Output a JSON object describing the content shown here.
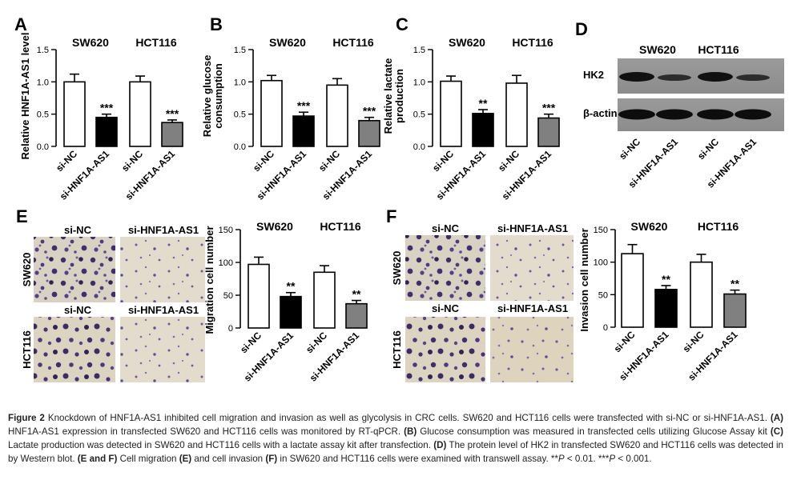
{
  "chart_data": [
    {
      "panel": "A",
      "type": "bar",
      "ylabel": "Relative HNF1A-AS1 level",
      "ylim": [
        0,
        1.5
      ],
      "yticks": [
        "0.0",
        "0.5",
        "1.0",
        "1.5"
      ],
      "groups": [
        "SW620",
        "HCT116"
      ],
      "categories": [
        "si-NC",
        "si-HNF1A-AS1",
        "si-NC",
        "si-HNF1A-AS1"
      ],
      "values": [
        1.0,
        0.45,
        1.0,
        0.37
      ],
      "errors": [
        0.12,
        0.05,
        0.09,
        0.04
      ],
      "fills": [
        "#ffffff",
        "#000000",
        "#ffffff",
        "#808080"
      ],
      "significance": [
        "",
        "***",
        "",
        "***"
      ]
    },
    {
      "panel": "B",
      "type": "bar",
      "ylabel": "Relative glucose consumption",
      "ylim": [
        0,
        1.5
      ],
      "yticks": [
        "0.0",
        "0.5",
        "1.0",
        "1.5"
      ],
      "groups": [
        "SW620",
        "HCT116"
      ],
      "categories": [
        "si-NC",
        "si-HNF1A-AS1",
        "si-NC",
        "si-HNF1A-AS1"
      ],
      "values": [
        1.02,
        0.47,
        0.95,
        0.4
      ],
      "errors": [
        0.08,
        0.06,
        0.1,
        0.05
      ],
      "fills": [
        "#ffffff",
        "#000000",
        "#ffffff",
        "#808080"
      ],
      "significance": [
        "",
        "***",
        "",
        "***"
      ]
    },
    {
      "panel": "C",
      "type": "bar",
      "ylabel": "Relative lactate production",
      "ylim": [
        0,
        1.5
      ],
      "yticks": [
        "0.0",
        "0.5",
        "1.0",
        "1.5"
      ],
      "groups": [
        "SW620",
        "HCT116"
      ],
      "categories": [
        "si-NC",
        "si-HNF1A-AS1",
        "si-NC",
        "si-HNF1A-AS1"
      ],
      "values": [
        1.01,
        0.51,
        0.98,
        0.44
      ],
      "errors": [
        0.08,
        0.06,
        0.12,
        0.06
      ],
      "fills": [
        "#ffffff",
        "#000000",
        "#ffffff",
        "#808080"
      ],
      "significance": [
        "",
        "**",
        "",
        "***"
      ]
    },
    {
      "panel": "E",
      "type": "bar",
      "ylabel": "Migration cell number",
      "ylim": [
        0,
        150
      ],
      "yticks": [
        "0",
        "50",
        "100",
        "150"
      ],
      "groups": [
        "SW620",
        "HCT116"
      ],
      "categories": [
        "si-NC",
        "si-HNF1A-AS1",
        "si-NC",
        "si-HNF1A-AS1"
      ],
      "values": [
        97,
        48,
        85,
        37
      ],
      "errors": [
        11,
        6,
        10,
        5
      ],
      "fills": [
        "#ffffff",
        "#000000",
        "#ffffff",
        "#808080"
      ],
      "significance": [
        "",
        "**",
        "",
        "**"
      ]
    },
    {
      "panel": "F",
      "type": "bar",
      "ylabel": "Invasion cell number",
      "ylim": [
        0,
        150
      ],
      "yticks": [
        "0",
        "50",
        "100",
        "150"
      ],
      "groups": [
        "SW620",
        "HCT116"
      ],
      "categories": [
        "si-NC",
        "si-HNF1A-AS1",
        "si-NC",
        "si-HNF1A-AS1"
      ],
      "values": [
        113,
        58,
        100,
        51
      ],
      "errors": [
        14,
        6,
        12,
        6
      ],
      "fills": [
        "#ffffff",
        "#000000",
        "#ffffff",
        "#808080"
      ],
      "significance": [
        "",
        "**",
        "",
        "**"
      ]
    }
  ],
  "panel_letters": {
    "a": "A",
    "b": "B",
    "c": "C",
    "d": "D",
    "e": "E",
    "f": "F"
  },
  "western_blot": {
    "groups": [
      "SW620",
      "HCT116"
    ],
    "rows": [
      "HK2",
      "β-actin"
    ],
    "lanes": [
      "si-NC",
      "si-HNF1A-AS1",
      "si-NC",
      "si-HNF1A-AS1"
    ]
  },
  "transwell": {
    "migration": {
      "col_labels": [
        "si-NC",
        "si-HNF1A-AS1"
      ],
      "row2_labels": [
        "si-NC",
        "si-HNF1A-AS1"
      ],
      "row_labels": [
        "SW620",
        "HCT116"
      ]
    },
    "invasion": {
      "col_labels": [
        "si-NC",
        "si-HNF1A-AS1"
      ],
      "row2_labels": [
        "si-NC",
        "si-HNF1A-AS1"
      ],
      "row_labels": [
        "SW620",
        "HCT116"
      ]
    }
  },
  "caption": {
    "figure_label": "Figure 2",
    "title": " Knockdown of HNF1A-AS1 inhibited cell migration and invasion as well as glycolysis in CRC cells. SW620 and HCT116 cells were transfected with si-NC or si-HNF1A-AS1. ",
    "a_label": "(A)",
    "a_text": " HNF1A-AS1 expression in transfected SW620 and HCT116 cells was monitored by RT-qPCR. ",
    "b_label": "(B)",
    "b_text": " Glucose consumption was measured in transfected cells utilizing Glucose Assay kit ",
    "c_label": "(C)",
    "c_text": " Lactate production was detected in SW620 and HCT116 cells with a lactate assay kit after transfection. ",
    "d_label": "(D)",
    "d_text": " The protein level of HK2 in transfected SW620 and HCT116 cells was detected in by Western blot. ",
    "ef_label": "(E and F)",
    "ef_text": " Cell migration ",
    "e_label": "(E)",
    "e_text": " and cell invasion ",
    "f_label": "(F)",
    "f_text": " in SW620 and HCT116 cells were examined with transwell assay. **",
    "p1": "P",
    "p1_text": " < 0.01. ***",
    "p2": "P",
    "p2_text": " < 0.001."
  }
}
